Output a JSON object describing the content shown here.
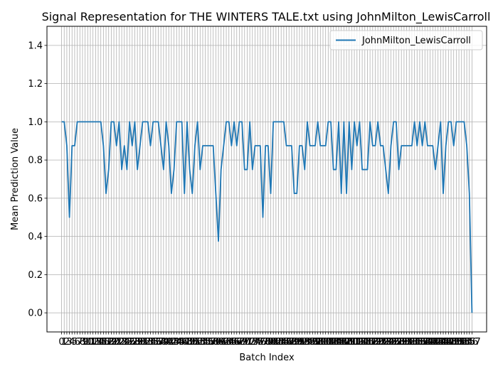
{
  "chart_data": {
    "type": "line",
    "title": "Signal Representation for THE WINTERS TALE.txt using JohnMilton_LewisCarroll",
    "xlabel": "Batch Index",
    "ylabel": "Mean Prediction Value",
    "xlim": [
      -5.6,
      162.6
    ],
    "ylim": [
      -0.1,
      1.5
    ],
    "grid": true,
    "legend_position": "upper right",
    "yticks": [
      0.0,
      0.2,
      0.4,
      0.6,
      0.8,
      1.0,
      1.2,
      1.4
    ],
    "ytick_labels": [
      "0.0",
      "0.2",
      "0.4",
      "0.6",
      "0.8",
      "1.0",
      "1.2",
      "1.4"
    ],
    "xticks": [
      0,
      1,
      2,
      3,
      4,
      5,
      6,
      7,
      8,
      9,
      10,
      11,
      12,
      13,
      14,
      15,
      16,
      17,
      18,
      19,
      20,
      21,
      22,
      23,
      24,
      25,
      26,
      27,
      28,
      29,
      30,
      31,
      32,
      33,
      34,
      35,
      36,
      37,
      38,
      39,
      40,
      41,
      42,
      43,
      44,
      45,
      46,
      47,
      48,
      49,
      50,
      51,
      52,
      53,
      54,
      55,
      56,
      57,
      58,
      59,
      60,
      61,
      62,
      63,
      64,
      65,
      66,
      67,
      68,
      69,
      70,
      71,
      72,
      73,
      74,
      75,
      76,
      77,
      78,
      79,
      80,
      81,
      82,
      83,
      84,
      85,
      86,
      87,
      88,
      89,
      90,
      91,
      92,
      93,
      94,
      95,
      96,
      97,
      98,
      99,
      100,
      101,
      102,
      103,
      104,
      105,
      106,
      107,
      108,
      109,
      110,
      111,
      112,
      113,
      114,
      115,
      116,
      117,
      118,
      119,
      120,
      121,
      122,
      123,
      124,
      125,
      126,
      127,
      128,
      129,
      130,
      131,
      132,
      133,
      134,
      135,
      136,
      137,
      138,
      139,
      140,
      141,
      142,
      143,
      144,
      145,
      146,
      147,
      148,
      149,
      150,
      151,
      152,
      153,
      154,
      155,
      156,
      157
    ],
    "series": [
      {
        "name": "JohnMilton_LewisCarroll",
        "color": "#1f77b4",
        "x": [
          0,
          1,
          2,
          3,
          4,
          5,
          6,
          7,
          8,
          9,
          10,
          11,
          12,
          13,
          14,
          15,
          16,
          17,
          18,
          19,
          20,
          21,
          22,
          23,
          24,
          25,
          26,
          27,
          28,
          29,
          30,
          31,
          32,
          33,
          34,
          35,
          36,
          37,
          38,
          39,
          40,
          41,
          42,
          43,
          44,
          45,
          46,
          47,
          48,
          49,
          50,
          51,
          52,
          53,
          54,
          55,
          56,
          57,
          58,
          59,
          60,
          61,
          62,
          63,
          64,
          65,
          66,
          67,
          68,
          69,
          70,
          71,
          72,
          73,
          74,
          75,
          76,
          77,
          78,
          79,
          80,
          81,
          82,
          83,
          84,
          85,
          86,
          87,
          88,
          89,
          90,
          91,
          92,
          93,
          94,
          95,
          96,
          97,
          98,
          99,
          100,
          101,
          102,
          103,
          104,
          105,
          106,
          107,
          108,
          109,
          110,
          111,
          112,
          113,
          114,
          115,
          116,
          117,
          118,
          119,
          120,
          121,
          122,
          123,
          124,
          125,
          126,
          127,
          128,
          129,
          130,
          131,
          132,
          133,
          134,
          135,
          136,
          137,
          138,
          139,
          140,
          141,
          142,
          143,
          144,
          145,
          146,
          147,
          148,
          149,
          150,
          151,
          152,
          153,
          154,
          155,
          156,
          157
        ],
        "values": [
          1.0,
          1.0,
          0.875,
          0.5,
          0.875,
          0.875,
          1.0,
          1.0,
          1.0,
          1.0,
          1.0,
          1.0,
          1.0,
          1.0,
          1.0,
          1.0,
          0.875,
          0.625,
          0.75,
          1.0,
          1.0,
          0.875,
          1.0,
          0.75,
          0.875,
          0.75,
          1.0,
          0.875,
          1.0,
          0.75,
          0.875,
          1.0,
          1.0,
          1.0,
          0.875,
          1.0,
          1.0,
          1.0,
          0.875,
          0.75,
          1.0,
          0.875,
          0.625,
          0.75,
          1.0,
          1.0,
          1.0,
          0.625,
          1.0,
          0.75,
          0.625,
          0.875,
          1.0,
          0.75,
          0.875,
          0.875,
          0.875,
          0.875,
          0.875,
          0.625,
          0.375,
          0.75,
          0.875,
          1.0,
          1.0,
          0.875,
          1.0,
          0.875,
          1.0,
          1.0,
          0.75,
          0.75,
          1.0,
          0.75,
          0.875,
          0.875,
          0.875,
          0.5,
          0.875,
          0.875,
          0.625,
          1.0,
          1.0,
          1.0,
          1.0,
          1.0,
          0.875,
          0.875,
          0.875,
          0.625,
          0.625,
          0.875,
          0.875,
          0.75,
          1.0,
          0.875,
          0.875,
          0.875,
          1.0,
          0.875,
          0.875,
          0.875,
          1.0,
          1.0,
          0.75,
          0.75,
          1.0,
          0.625,
          1.0,
          0.625,
          1.0,
          0.75,
          1.0,
          0.875,
          1.0,
          0.75,
          0.75,
          0.75,
          1.0,
          0.875,
          0.875,
          1.0,
          0.875,
          0.875,
          0.75,
          0.625,
          0.875,
          1.0,
          1.0,
          0.75,
          0.875,
          0.875,
          0.875,
          0.875,
          0.875,
          1.0,
          0.875,
          1.0,
          0.875,
          1.0,
          0.875,
          0.875,
          0.875,
          0.75,
          0.875,
          1.0,
          0.625,
          0.875,
          1.0,
          1.0,
          0.875,
          1.0,
          1.0,
          1.0,
          1.0,
          0.875,
          0.625,
          0.0
        ]
      }
    ]
  }
}
